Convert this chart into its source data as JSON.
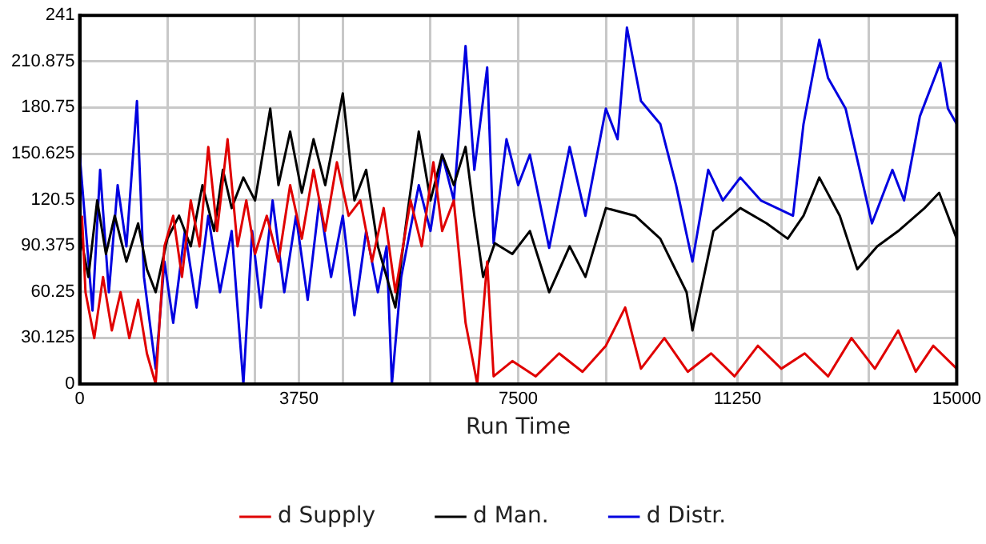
{
  "chart_data": {
    "type": "line",
    "xlabel": "Run Time",
    "xlim": [
      0,
      15000
    ],
    "xticks": [
      0,
      {
        "value": 1500,
        "label": null
      },
      {
        "value": 3000,
        "label": null
      },
      3750,
      {
        "value": 4500,
        "label": null
      },
      {
        "value": 6000,
        "label": null
      },
      7500,
      {
        "value": 9000,
        "label": null
      },
      {
        "value": 10500,
        "label": null
      },
      11250,
      {
        "value": 12000,
        "label": null
      },
      {
        "value": 13500,
        "label": null
      },
      15000
    ],
    "ylim": [
      0,
      241
    ],
    "yticks": [
      0,
      30.125,
      60.25,
      90.375,
      120.5,
      150.625,
      180.75,
      210.875,
      241
    ],
    "grid": true,
    "legend": "bottom",
    "marker": "none",
    "line_style": "solid",
    "series": [
      {
        "name": "d Supply",
        "color": "#e00000",
        "x": [
          40,
          100,
          250,
          400,
          550,
          700,
          850,
          1000,
          1150,
          1300,
          1450,
          1600,
          1750,
          1900,
          2050,
          2200,
          2350,
          2530,
          2700,
          2850,
          3000,
          3200,
          3400,
          3600,
          3800,
          4000,
          4200,
          4400,
          4600,
          4800,
          5000,
          5200,
          5400,
          5660,
          5850,
          6050,
          6200,
          6400,
          6600,
          6800,
          6970,
          7080,
          7400,
          7800,
          8200,
          8600,
          9000,
          9330,
          9600,
          10000,
          10400,
          10800,
          11200,
          11600,
          12000,
          12400,
          12800,
          13200,
          13600,
          14000,
          14300,
          14600,
          15000
        ],
        "values": [
          110,
          60,
          30,
          70,
          35,
          60,
          30,
          55,
          20,
          0,
          90,
          110,
          70,
          120,
          90,
          155,
          100,
          160,
          90,
          120,
          85,
          110,
          80,
          130,
          95,
          140,
          100,
          145,
          110,
          120,
          80,
          115,
          60,
          120,
          90,
          145,
          100,
          120,
          40,
          0,
          80,
          5,
          15,
          5,
          20,
          8,
          25,
          50,
          10,
          30,
          8,
          20,
          5,
          25,
          10,
          20,
          5,
          30,
          10,
          35,
          8,
          25,
          10
        ]
      },
      {
        "name": "d Man.",
        "color": "#000000",
        "x": [
          0,
          150,
          300,
          450,
          600,
          800,
          1000,
          1150,
          1300,
          1500,
          1700,
          1900,
          2100,
          2300,
          2450,
          2600,
          2800,
          3000,
          3260,
          3400,
          3600,
          3800,
          4000,
          4200,
          4500,
          4700,
          4900,
          5100,
          5400,
          5600,
          5800,
          6000,
          6200,
          6400,
          6600,
          6750,
          6900,
          7100,
          7400,
          7700,
          8030,
          8380,
          8650,
          9000,
          9500,
          9930,
          10380,
          10480,
          10840,
          11300,
          11750,
          12110,
          12380,
          12650,
          13000,
          13300,
          13640,
          14000,
          14450,
          14700,
          15000
        ],
        "values": [
          100,
          70,
          120,
          85,
          110,
          80,
          105,
          75,
          60,
          95,
          110,
          90,
          130,
          100,
          140,
          115,
          135,
          120,
          180,
          130,
          165,
          125,
          160,
          130,
          190,
          120,
          140,
          90,
          50,
          110,
          165,
          120,
          150,
          130,
          155,
          110,
          70,
          92,
          85,
          100,
          60,
          90,
          70,
          115,
          110,
          95,
          60,
          35,
          100,
          115,
          105,
          95,
          110,
          135,
          110,
          75,
          90,
          100,
          115,
          125,
          95
        ]
      },
      {
        "name": "d Distr.",
        "color": "#0000e0",
        "x": [
          0,
          220,
          350,
          500,
          650,
          800,
          980,
          1100,
          1300,
          1450,
          1600,
          1800,
          2000,
          2200,
          2400,
          2600,
          2800,
          2950,
          3100,
          3300,
          3500,
          3700,
          3900,
          4100,
          4300,
          4500,
          4700,
          4900,
          5100,
          5250,
          5340,
          5500,
          5800,
          6000,
          6200,
          6400,
          6600,
          6750,
          6970,
          7080,
          7300,
          7500,
          7700,
          8030,
          8380,
          8650,
          9000,
          9200,
          9360,
          9600,
          9930,
          10200,
          10480,
          10750,
          11000,
          11300,
          11650,
          12200,
          12380,
          12650,
          12800,
          13100,
          13550,
          13900,
          14100,
          14370,
          14720,
          14850,
          15000
        ],
        "values": [
          150,
          48,
          140,
          60,
          130,
          90,
          185,
          70,
          10,
          80,
          40,
          100,
          50,
          110,
          60,
          100,
          0,
          100,
          50,
          120,
          60,
          110,
          55,
          120,
          70,
          110,
          45,
          100,
          60,
          90,
          0,
          70,
          130,
          100,
          150,
          120,
          221,
          140,
          207,
          92,
          160,
          130,
          150,
          89,
          155,
          110,
          180,
          160,
          233,
          185,
          170,
          130,
          80,
          140,
          120,
          135,
          120,
          110,
          170,
          225,
          200,
          180,
          105,
          140,
          120,
          175,
          210,
          180,
          170
        ]
      }
    ]
  }
}
